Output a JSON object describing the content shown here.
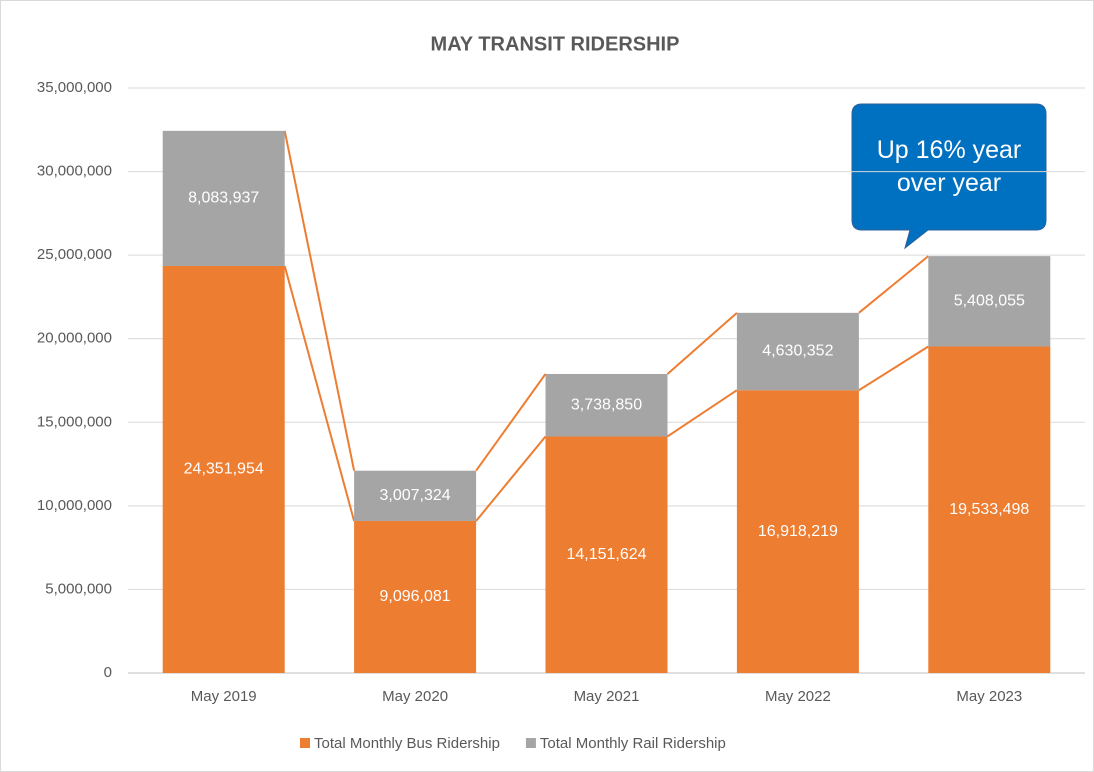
{
  "chart_data": {
    "type": "stacked_bar",
    "title": "MAY TRANSIT RIDERSHIP",
    "categories": [
      "May 2019",
      "May 2020",
      "May 2021",
      "May 2022",
      "May 2023"
    ],
    "series": [
      {
        "name": "Total Monthly Bus Ridership",
        "color": "#ed7d31",
        "values": [
          24351954,
          9096081,
          14151624,
          16918219,
          19533498
        ],
        "value_labels": [
          "24,351,954",
          "9,096,081",
          "14,151,624",
          "16,918,219",
          "19,533,498"
        ]
      },
      {
        "name": "Total Monthly Rail Ridership",
        "color": "#a5a5a5",
        "values": [
          8083937,
          3007324,
          3738850,
          4630352,
          5408055
        ],
        "value_labels": [
          "8,083,937",
          "3,007,324",
          "3,738,850",
          "4,630,352",
          "5,408,055"
        ]
      }
    ],
    "ylim": [
      0,
      35000000
    ],
    "yticks": [
      0,
      {
        "value": 5000000,
        "label": "5,000,000"
      },
      {
        "value": 10000000,
        "label": "10,000,000"
      },
      {
        "value": 15000000,
        "label": "15,000,000"
      },
      {
        "value": 20000000,
        "label": "20,000,000"
      },
      {
        "value": 25000000,
        "label": "25,000,000"
      },
      {
        "value": 30000000,
        "label": "30,000,000"
      },
      {
        "value": 35000000,
        "label": "35,000,000"
      }
    ],
    "grid": true,
    "legend": "bottom",
    "annotation": "Up 16% year over year",
    "annotation_color": "#0070c0"
  }
}
